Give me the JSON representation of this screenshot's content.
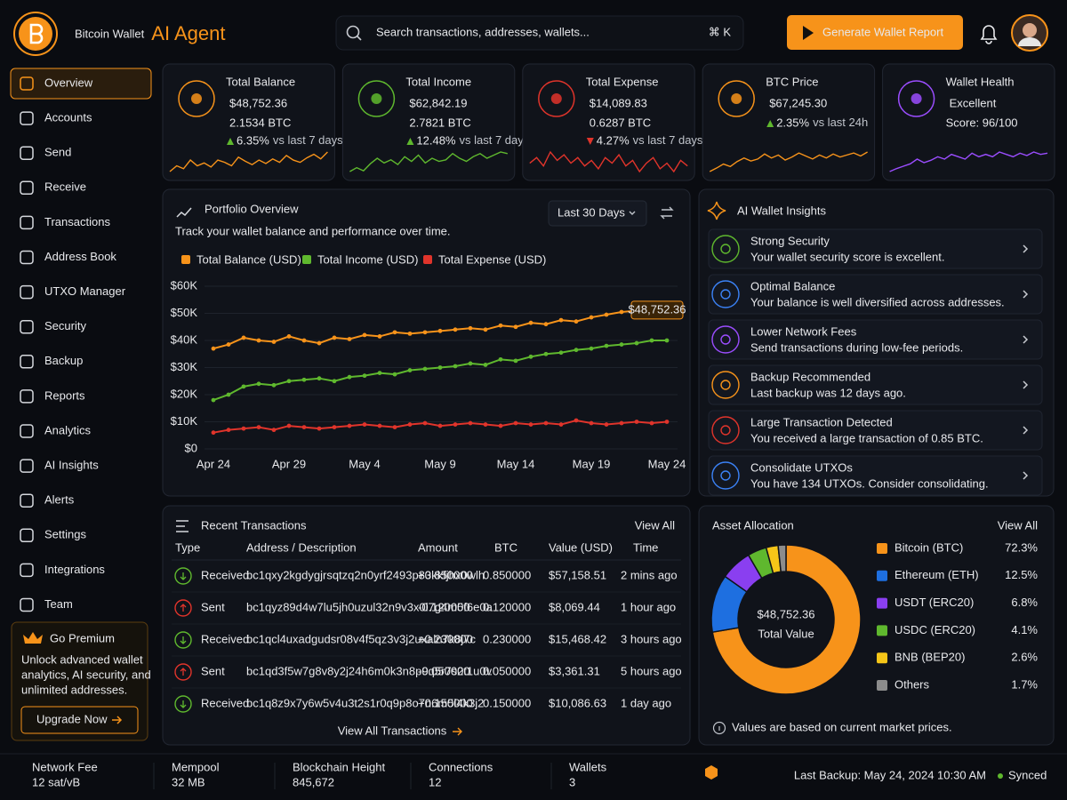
{
  "brand": {
    "name": "Bitcoin Wallet",
    "tag": "AI Agent"
  },
  "search": {
    "placeholder": "Search transactions, addresses, wallets...",
    "shortcut": "⌘ K"
  },
  "report_button": "Generate Wallet Report",
  "nav": {
    "items": [
      "Overview",
      "Accounts",
      "Send",
      "Receive",
      "Transactions",
      "Address Book",
      "UTXO Manager",
      "Security",
      "Backup",
      "Reports",
      "Analytics",
      "AI Insights",
      "Alerts",
      "Settings",
      "Integrations",
      "Team"
    ],
    "active": 0
  },
  "premium": {
    "title": "Go Premium",
    "text": [
      "Unlock advanced wallet",
      "analytics, AI security, and",
      "unlimited addresses."
    ],
    "button": "Upgrade Now"
  },
  "stats": [
    {
      "label": "Total Balance",
      "value": "$48,752.36",
      "sub": "2.1534 BTC",
      "change": "6.35%",
      "period": "vs last 7 days",
      "direction": "up",
      "color": "#f7931a",
      "trend": [
        3,
        4,
        3.5,
        5,
        4,
        4.5,
        3.8,
        5,
        4.6,
        4,
        5.5,
        4.8,
        4.2,
        5,
        4.4,
        5.2,
        4.6,
        5.8,
        5,
        4.6,
        5.4,
        6,
        5.2,
        6.4
      ]
    },
    {
      "label": "Total Income",
      "value": "$62,842.19",
      "sub": "2.7821 BTC",
      "change": "12.48%",
      "period": "vs last 7 days",
      "direction": "up",
      "color": "#5fb82e",
      "trend": [
        2.5,
        3,
        2.6,
        3.5,
        4.2,
        3.6,
        4,
        3.4,
        4.4,
        3.8,
        4.6,
        3.6,
        4.2,
        3.8,
        4,
        4.8,
        4.2,
        3.8,
        4.4,
        4.8,
        4.2,
        4.6,
        5,
        4.8
      ]
    },
    {
      "label": "Total Expense",
      "value": "$14,089.83",
      "sub": "0.6287 BTC",
      "change": "4.27%",
      "period": "vs last 7 days",
      "direction": "down",
      "color": "#e0342b",
      "trend": [
        4.2,
        4.6,
        4,
        5,
        4.4,
        4.8,
        4.2,
        4.6,
        4,
        4.4,
        3.8,
        4.6,
        4.2,
        4.8,
        4,
        4.4,
        3.6,
        4.2,
        4.6,
        3.8,
        4.2,
        3.6,
        4.4,
        4
      ]
    },
    {
      "label": "BTC Price",
      "value": "$67,245.30",
      "change": "2.35%",
      "period": "vs last 24h",
      "direction": "up",
      "color": "#f7931a",
      "trend": [
        2.5,
        3.2,
        4,
        3.5,
        4.5,
        5.2,
        4.6,
        5,
        6,
        5.2,
        5.8,
        4.8,
        5.4,
        6.2,
        5.6,
        5,
        5.8,
        5.2,
        6,
        5.4,
        5.8,
        6.2,
        5.6,
        6.4
      ]
    },
    {
      "label": "Wallet Health",
      "value": "Excellent",
      "note": "Score: 96/100",
      "color": "#9b4dff",
      "trend": [
        2.5,
        3,
        3.4,
        3.8,
        4.6,
        4,
        4.4,
        5,
        4.6,
        5.4,
        5,
        4.6,
        5.6,
        5,
        5.4,
        5,
        5.8,
        5.4,
        5,
        5.6,
        5.2,
        5.8,
        5.4,
        5.6
      ]
    }
  ],
  "chart_data": [
    {
      "type": "line",
      "title": "Portfolio Overview",
      "subtitle": "Track your wallet balance and performance over time.",
      "range": "Last 30 Days",
      "categories": [
        "Apr 24",
        null,
        null,
        null,
        null,
        "Apr 29",
        null,
        null,
        null,
        null,
        "May 4",
        null,
        null,
        null,
        null,
        "May 9",
        null,
        null,
        null,
        null,
        "May 14",
        null,
        null,
        null,
        null,
        "May 19",
        null,
        null,
        null,
        null,
        "May 24"
      ],
      "series": [
        {
          "name": "Total Balance (USD)",
          "color": "#f7931a",
          "values": [
            37000,
            38500,
            41000,
            40000,
            39500,
            41500,
            40000,
            39000,
            41000,
            40500,
            42000,
            41500,
            43000,
            42500,
            43000,
            43500,
            44000,
            44500,
            44000,
            45500,
            45000,
            46500,
            46000,
            47500,
            47000,
            48500,
            49500,
            50500,
            51000,
            52500,
            53500
          ]
        },
        {
          "name": "Total Income (USD)",
          "color": "#5fb82e",
          "values": [
            18000,
            20000,
            23000,
            24000,
            23500,
            25000,
            25500,
            26000,
            25000,
            26500,
            27000,
            28000,
            27500,
            29000,
            29500,
            30000,
            30500,
            31500,
            31000,
            33000,
            32500,
            34000,
            35000,
            35500,
            36500,
            37000,
            38000,
            38500,
            39000,
            40000,
            40000
          ]
        },
        {
          "name": "Total Expense (USD)",
          "color": "#e0342b",
          "values": [
            6000,
            7000,
            7500,
            8000,
            7000,
            8500,
            8000,
            7500,
            8000,
            8500,
            9000,
            8500,
            8000,
            9000,
            9500,
            8500,
            9000,
            9500,
            9000,
            8500,
            9500,
            9000,
            9500,
            9000,
            10500,
            9500,
            9000,
            9500,
            10000,
            9500,
            10000
          ]
        }
      ],
      "ylim": [
        0,
        60000
      ],
      "yticks": [
        {
          "value": 0,
          "label": "$0"
        },
        {
          "value": 10000,
          "label": "$10K"
        },
        {
          "value": 20000,
          "label": "$20K"
        },
        {
          "value": 30000,
          "label": "$30K"
        },
        {
          "value": 40000,
          "label": "$40K"
        },
        {
          "value": 50000,
          "label": "$50K"
        },
        {
          "value": 60000,
          "label": "$60K"
        }
      ],
      "annotation": "$48,752.36",
      "grid": true
    },
    {
      "type": "pie",
      "title": "Asset Allocation",
      "link": "View All",
      "center_value": "$48,752.36",
      "center_label": "Total Value",
      "categories": [
        "Bitcoin (BTC)",
        "Ethereum (ETH)",
        "USDT (ERC20)",
        "USDC (ERC20)",
        "BNB (BEP20)",
        "Others"
      ],
      "values": [
        72.3,
        12.5,
        6.8,
        4.1,
        2.6,
        1.7
      ],
      "value_labels": [
        "72.3%",
        "12.5%",
        "6.8%",
        "4.1%",
        "2.6%",
        "1.7%"
      ],
      "colors": [
        "#f7931a",
        "#1e6fe0",
        "#8a3ff0",
        "#5fb82e",
        "#f5c518",
        "#8c8c8c"
      ],
      "note": "Values are based on current market prices."
    }
  ],
  "insights": {
    "title": "AI Wallet Insights",
    "items": [
      {
        "title": "Strong Security",
        "text": "Your wallet security score is excellent.",
        "color": "#5fb82e"
      },
      {
        "title": "Optimal Balance",
        "text": "Your balance is well diversified across addresses.",
        "color": "#3b82f6"
      },
      {
        "title": "Lower Network Fees",
        "text": "Send transactions during low-fee periods.",
        "color": "#9b4dff"
      },
      {
        "title": "Backup Recommended",
        "text": "Last backup was 12 days ago.",
        "color": "#f7931a"
      },
      {
        "title": "Large Transaction Detected",
        "text": "You received a large transaction of 0.85 BTC.",
        "color": "#e0342b"
      },
      {
        "title": "Consolidate UTXOs",
        "text": "You have 134 UTXOs. Consider consolidating.",
        "color": "#3b82f6"
      }
    ]
  },
  "transactions": {
    "title": "Recent Transactions",
    "link": "View All",
    "columns": [
      "Type",
      "Address / Description",
      "Amount",
      "BTC",
      "Value (USD)",
      "Time"
    ],
    "rows": [
      [
        "Received",
        "bc1qxy2kgdygjrsqtzq2n0yrf2493p83kkfjhx0wlh",
        "+0.850000",
        "0.850000",
        "$57,158.51",
        "2 mins ago"
      ],
      [
        "Sent",
        "bc1qyz89d4w7lu5jh0uzul32n9v3x0l7g4m5f6e0a",
        "-0.120000",
        "0.120000",
        "$8,069.44",
        "1 hour ago"
      ],
      [
        "Received",
        "bc1qcl4uxadgudsr08v4f5qz3v3j2uxaln7k8j7c",
        "+0.230000",
        "0.230000",
        "$15,468.42",
        "3 hours ago"
      ],
      [
        "Sent",
        "bc1qd3f5w7g8v8y2j24h6m0k3n8p9q5r7s2t1u0v",
        "-0.050000",
        "0.050000",
        "$3,361.31",
        "5 hours ago"
      ],
      [
        "Received",
        "bc1q8z9x7y6w5v4u3t2s1r0q9p8o7n6m5l4k3j2",
        "+0.150000",
        "0.150000",
        "$10,086.63",
        "1 day ago"
      ]
    ],
    "footer": "View All Transactions"
  },
  "status": {
    "items": [
      {
        "label": "Network Fee",
        "value": "12 sat/vB",
        "color": "#5fb82e"
      },
      {
        "label": "Mempool",
        "value": "32 MB",
        "color": "#3b82f6"
      },
      {
        "label": "Blockchain Height",
        "value": "845,672",
        "color": "#9b4dff"
      },
      {
        "label": "Connections",
        "value": "12",
        "color": "#5fb82e"
      },
      {
        "label": "Wallets",
        "value": "3",
        "color": "#f7931a"
      }
    ],
    "backup": "Last Backup: May 24, 2024 10:30 AM",
    "sync": "Synced"
  }
}
